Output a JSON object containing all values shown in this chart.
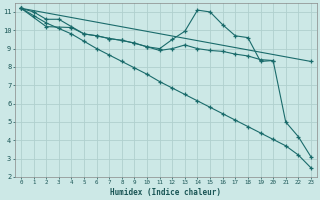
{
  "xlabel": "Humidex (Indice chaleur)",
  "bg_color": "#cce8e6",
  "grid_color": "#b0d0ce",
  "line_color": "#1a6b6b",
  "xlim": [
    -0.5,
    23.5
  ],
  "ylim": [
    2,
    11.5
  ],
  "xtick_vals": [
    0,
    1,
    2,
    3,
    4,
    5,
    6,
    7,
    8,
    9,
    10,
    11,
    12,
    13,
    14,
    15,
    16,
    17,
    18,
    19,
    20,
    21,
    22,
    23
  ],
  "ytick_vals": [
    2,
    3,
    4,
    5,
    6,
    7,
    8,
    9,
    10,
    11
  ],
  "line1_x": [
    0,
    1,
    2,
    3,
    4,
    5,
    6,
    7,
    8,
    9,
    10,
    11,
    12,
    13,
    14,
    15,
    16,
    17,
    18,
    19,
    20,
    21,
    22,
    23
  ],
  "line1_y": [
    11.2,
    11.0,
    10.6,
    10.6,
    10.2,
    9.8,
    9.7,
    9.55,
    9.45,
    9.3,
    9.1,
    9.0,
    9.5,
    9.95,
    11.1,
    11.0,
    10.3,
    9.7,
    9.6,
    8.3,
    8.35,
    5.0,
    4.2,
    3.1
  ],
  "line2_x": [
    0,
    2,
    4,
    5,
    6,
    7,
    8,
    9,
    10,
    11,
    12,
    13,
    14,
    15,
    16,
    17,
    18,
    19,
    20
  ],
  "line2_y": [
    11.2,
    10.2,
    10.15,
    9.8,
    9.7,
    9.55,
    9.45,
    9.3,
    9.1,
    8.9,
    9.0,
    9.2,
    9.0,
    8.9,
    8.85,
    8.7,
    8.6,
    8.4,
    8.35
  ],
  "line3_x": [
    0,
    23
  ],
  "line3_y": [
    11.2,
    8.3
  ],
  "line4_x": [
    0,
    1,
    2,
    3,
    4,
    5,
    6,
    7,
    8,
    9,
    10,
    11,
    12,
    13,
    14,
    15,
    16,
    17,
    18,
    19,
    20,
    21,
    22,
    23
  ],
  "line4_y": [
    11.2,
    10.8,
    10.4,
    10.1,
    9.8,
    9.4,
    9.0,
    8.65,
    8.3,
    7.95,
    7.6,
    7.2,
    6.85,
    6.5,
    6.15,
    5.8,
    5.45,
    5.1,
    4.75,
    4.4,
    4.05,
    3.7,
    3.2,
    2.5
  ]
}
